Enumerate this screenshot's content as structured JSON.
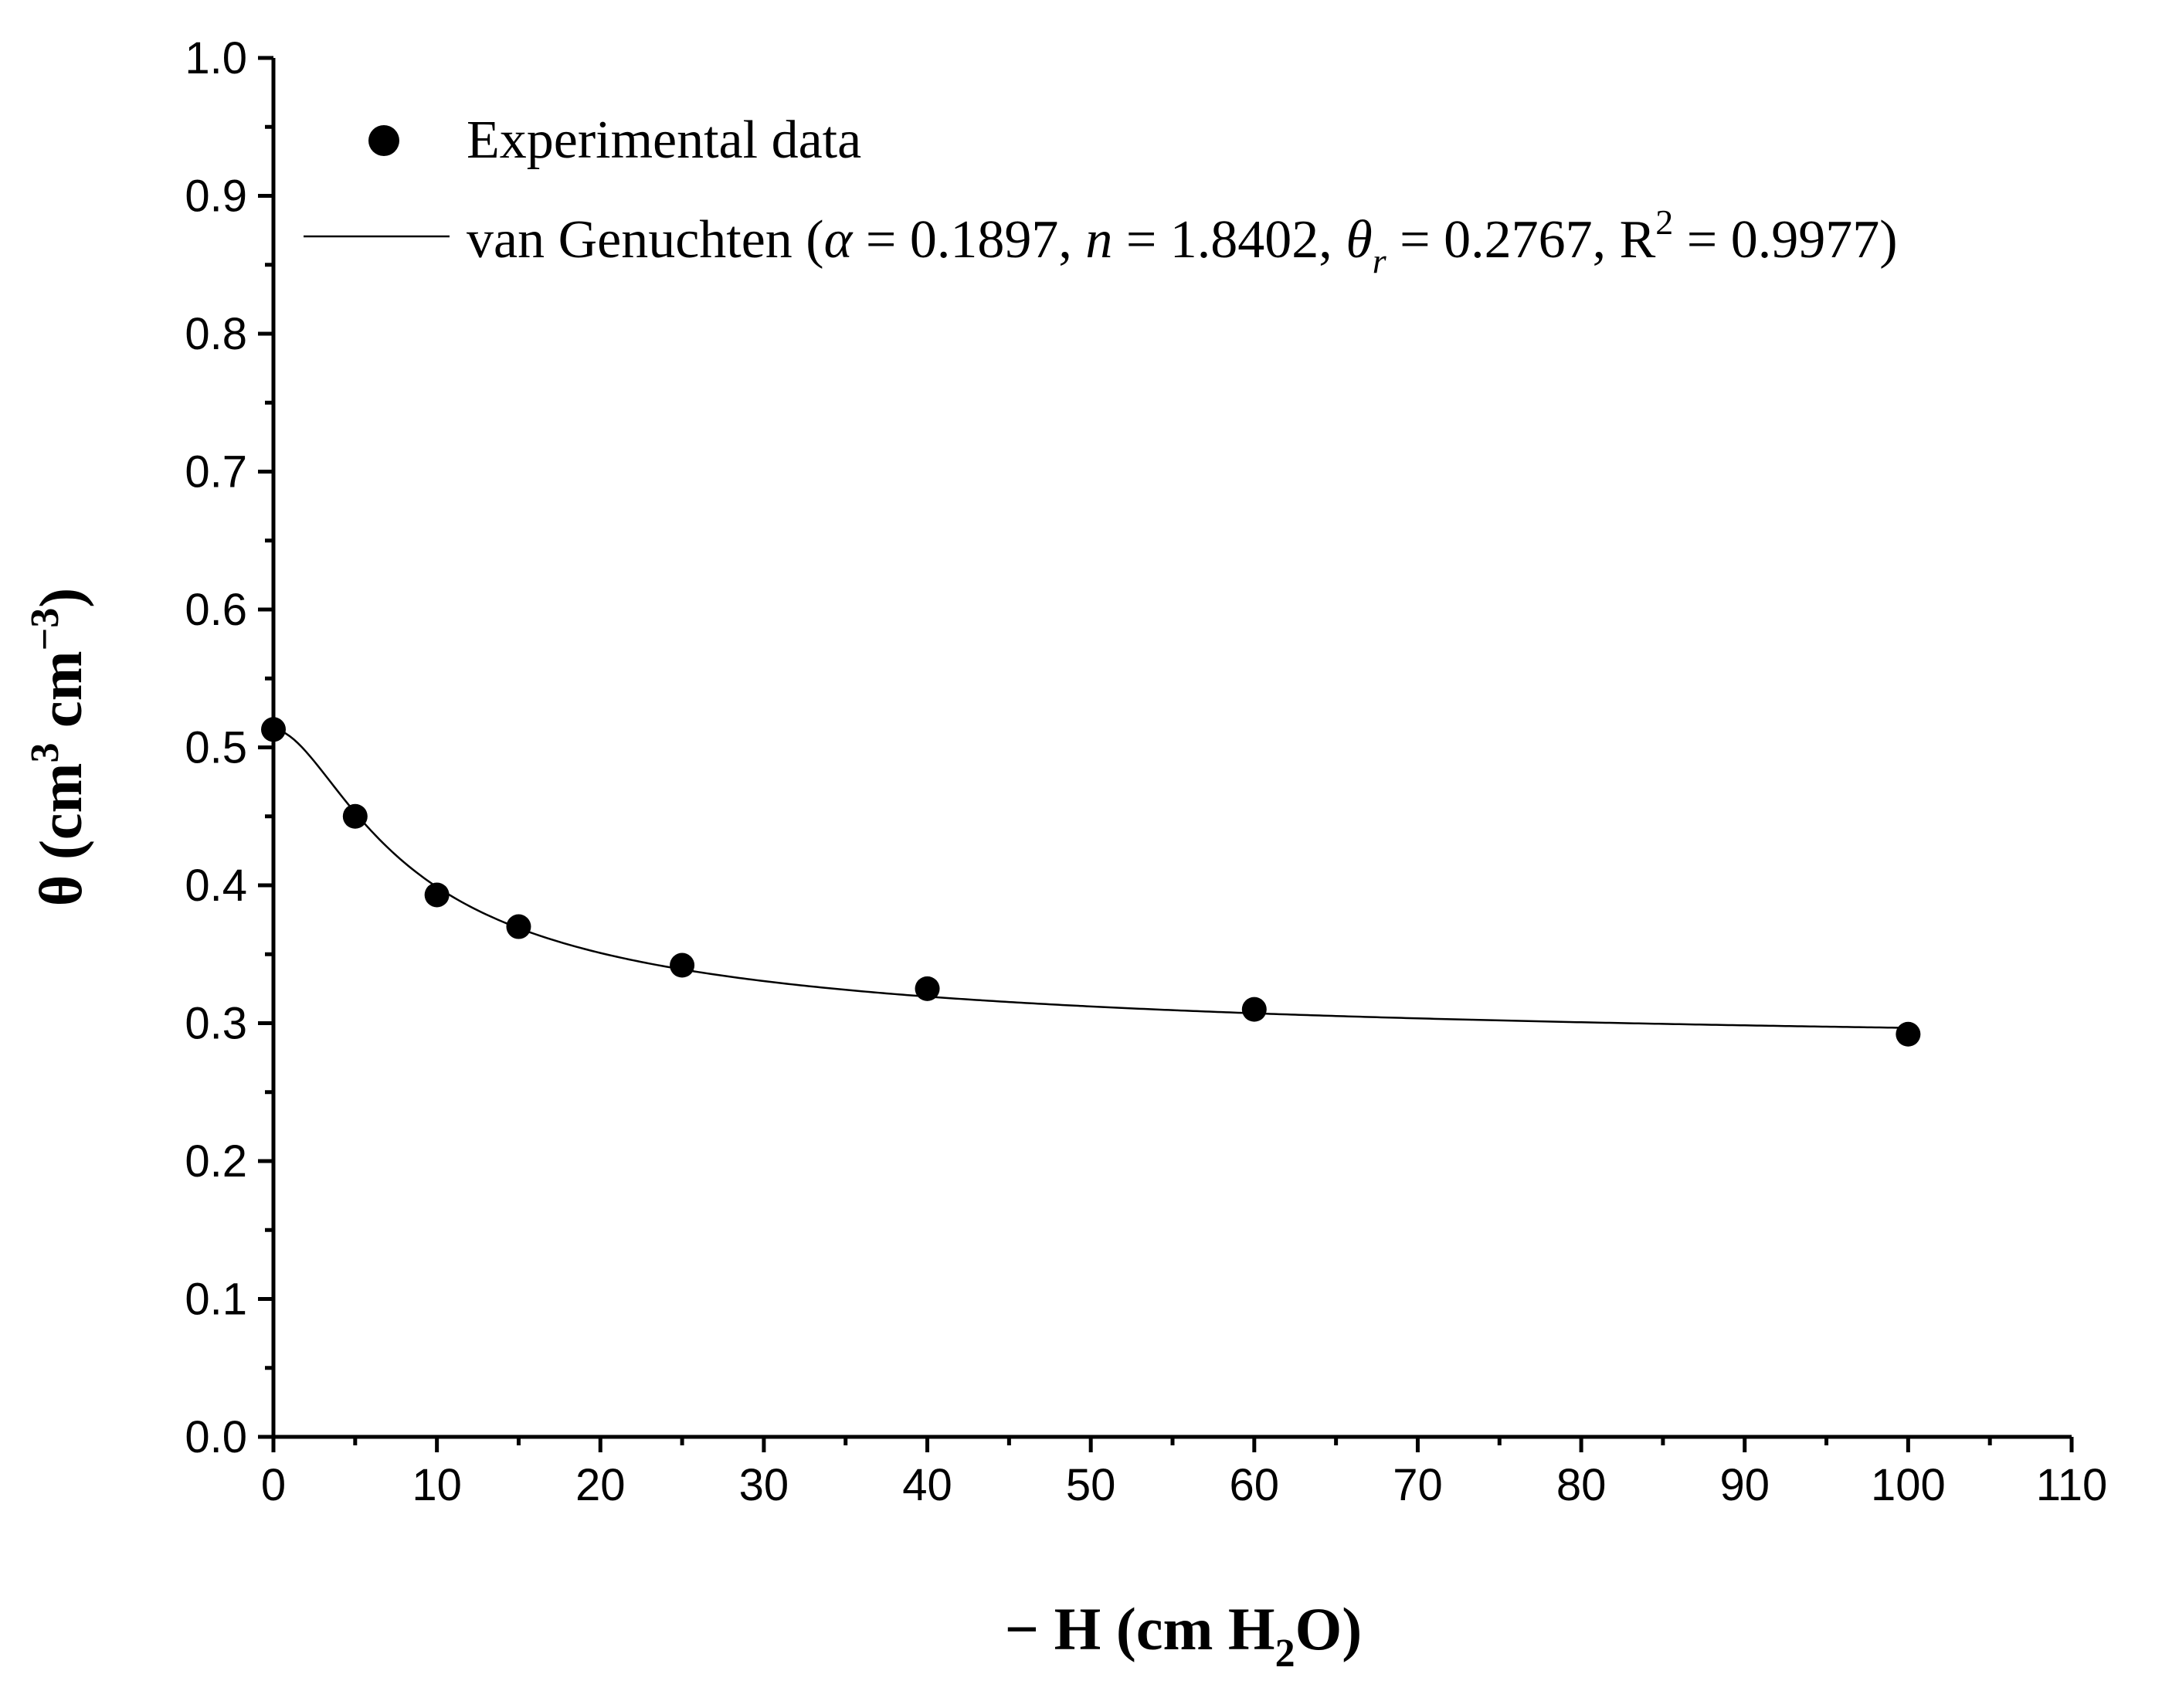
{
  "chart_data": {
    "type": "scatter",
    "title": "",
    "xlabel": "− H (cm H₂O)",
    "xlabel_parts": {
      "main": "− H (cm H",
      "sub": "2",
      "end": "O)"
    },
    "ylabel": "θ (cm³ cm⁻³)",
    "ylabel_parts": {
      "a": "θ (cm",
      "sup1": "3",
      "b": " cm",
      "sup2": "−3",
      "c": ")"
    },
    "xlim": [
      0,
      110
    ],
    "ylim": [
      0.0,
      1.0
    ],
    "x_ticks": [
      "0",
      "10",
      "20",
      "30",
      "40",
      "50",
      "60",
      "70",
      "80",
      "90",
      "100",
      "110"
    ],
    "y_ticks": [
      "0.0",
      "0.1",
      "0.2",
      "0.3",
      "0.4",
      "0.5",
      "0.6",
      "0.7",
      "0.8",
      "0.9",
      "1.0"
    ],
    "grid": false,
    "legend_position": "top-left",
    "series": [
      {
        "name": "Experimental data",
        "kind": "scatter",
        "x": [
          0,
          5,
          10,
          15,
          25,
          40,
          60,
          100
        ],
        "y": [
          0.513,
          0.45,
          0.393,
          0.37,
          0.342,
          0.325,
          0.31,
          0.292
        ]
      },
      {
        "name": "van Genuchten (α = 0.1897, n = 1.8402, θr = 0.2767, R2 = 0.9977)",
        "kind": "line",
        "model": "van_genuchten",
        "params": {
          "alpha": 0.1897,
          "n": 1.8402,
          "theta_r": 0.2767,
          "theta_s": 0.513,
          "R2": 0.9977
        },
        "x_range": [
          0,
          100
        ]
      }
    ],
    "legend": {
      "scatter_label": "Experimental data",
      "line_parts": {
        "p1": "van Genuchten (",
        "alpha_sym": "α",
        "p2": " = 0.1897, ",
        "n_sym": "n",
        "p3": " = 1.8402, ",
        "theta_sym": "θ",
        "r_sub": "r",
        "p4": " = 0.2767, R",
        "two_sup": "2",
        "p5": " = 0.9977)"
      }
    }
  }
}
